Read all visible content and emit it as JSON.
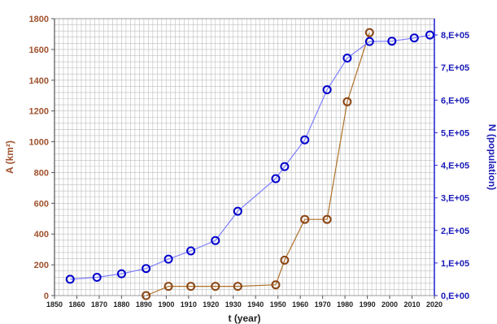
{
  "chart_data": {
    "type": "line",
    "x_label": "t (year)",
    "left_axis_label": "A (km²)",
    "right_axis_label": "N (population)",
    "xlim": [
      1850,
      2020
    ],
    "x_ticks": [
      1850,
      1860,
      1870,
      1880,
      1890,
      1900,
      1910,
      1920,
      1930,
      1940,
      1950,
      1960,
      1970,
      1980,
      1990,
      2000,
      2010,
      2020
    ],
    "ylim_left": [
      0,
      1800
    ],
    "y_ticks_left": [
      0,
      200,
      400,
      600,
      800,
      1000,
      1200,
      1400,
      1600,
      1800
    ],
    "ylim_right": [
      0,
      850000
    ],
    "y_ticks_right": [
      {
        "value": 0,
        "label": "0,E+00"
      },
      {
        "value": 100000,
        "label": "1,E+05"
      },
      {
        "value": 200000,
        "label": "2,E+05"
      },
      {
        "value": 300000,
        "label": "3,E+05"
      },
      {
        "value": 400000,
        "label": "4,E+05"
      },
      {
        "value": 500000,
        "label": "5,E+05"
      },
      {
        "value": 600000,
        "label": "6,E+05"
      },
      {
        "value": 700000,
        "label": "7,E+05"
      },
      {
        "value": 800000,
        "label": "8,E+05"
      }
    ],
    "grid": true,
    "series": [
      {
        "axis": "left",
        "color": "#b0702a",
        "marker_color": "#8b4513",
        "marker": "open-circle",
        "x": [
          1891,
          1901,
          1911,
          1922,
          1932,
          1949,
          1953,
          1962,
          1972,
          1981,
          1991
        ],
        "y": [
          0,
          60,
          60,
          60,
          60,
          70,
          230,
          495,
          495,
          1260,
          1710
        ]
      },
      {
        "axis": "right",
        "color": "#7f7fff",
        "marker_color": "#0000cc",
        "marker": "open-circle",
        "x": [
          1857,
          1869,
          1880,
          1891,
          1901,
          1911,
          1922,
          1932,
          1949,
          1953,
          1962,
          1972,
          1981,
          1991,
          2001,
          2011,
          2018
        ],
        "y": [
          50000,
          56000,
          67000,
          83000,
          112000,
          137000,
          169000,
          259000,
          359000,
          396000,
          478000,
          632000,
          729000,
          780000,
          781000,
          791000,
          800000
        ]
      }
    ]
  },
  "colors": {
    "left_axis_text": "#a0522d",
    "right_axis_text": "#1a1ab8",
    "grid": "#bdbdbd",
    "frame": "#9a9a9a"
  }
}
